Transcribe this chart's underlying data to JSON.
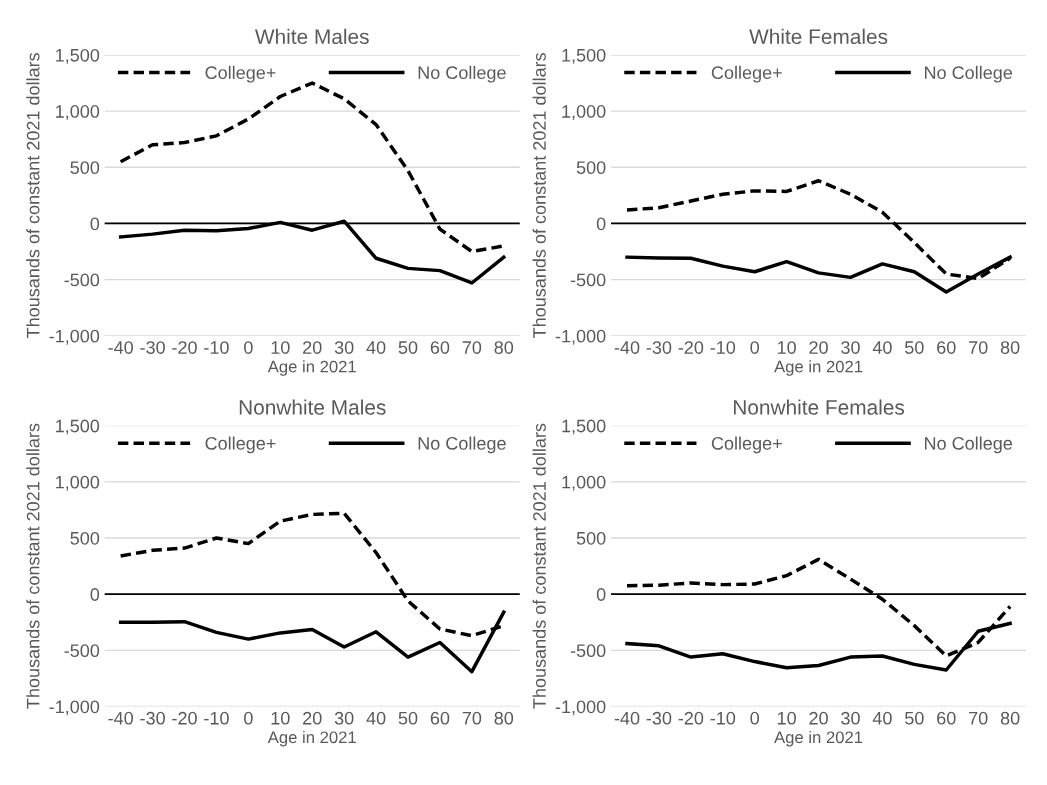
{
  "chart_data": [
    {
      "type": "line",
      "title": "White Males",
      "xlabel": "Age in 2021",
      "ylabel": "Thousands of constant 2021 dollars",
      "categories": [
        "-40",
        "-30",
        "-20",
        "-10",
        "0",
        "10",
        "20",
        "30",
        "40",
        "50",
        "60",
        "70",
        "80"
      ],
      "series": [
        {
          "name": "College+",
          "color": "#000000",
          "line_style": "dashed",
          "values": [
            550,
            700,
            720,
            780,
            930,
            1130,
            1250,
            1110,
            880,
            470,
            -50,
            -250,
            -200
          ]
        },
        {
          "name": "No College",
          "color": "#000000",
          "line_style": "solid",
          "values": [
            -120,
            -95,
            -60,
            -65,
            -45,
            10,
            -60,
            20,
            -310,
            -400,
            -420,
            -530,
            -300
          ]
        }
      ],
      "ylim": [
        -1000,
        1500
      ],
      "yticks": [
        {
          "value": -1000,
          "label": "-1,000"
        },
        {
          "value": -500,
          "label": "-500"
        },
        0,
        500,
        {
          "value": 1000,
          "label": "1,000"
        },
        {
          "value": 1500,
          "label": "1,500"
        }
      ],
      "ref_lines": [
        {
          "axis": "y",
          "value": 0,
          "color": "#000000"
        }
      ],
      "grid": "y",
      "legend": "top"
    },
    {
      "type": "line",
      "title": "White Females",
      "xlabel": "Age in 2021",
      "ylabel": "Thousands of constant 2021 dollars",
      "categories": [
        "-40",
        "-30",
        "-20",
        "-10",
        "0",
        "10",
        "20",
        "30",
        "40",
        "50",
        "60",
        "70",
        "80"
      ],
      "series": [
        {
          "name": "College+",
          "color": "#000000",
          "line_style": "dashed",
          "values": [
            120,
            140,
            200,
            260,
            290,
            285,
            380,
            260,
            100,
            -170,
            -450,
            -490,
            -310
          ]
        },
        {
          "name": "No College",
          "color": "#000000",
          "line_style": "solid",
          "values": [
            -300,
            -307,
            -310,
            -380,
            -430,
            -340,
            -440,
            -480,
            -360,
            -430,
            -610,
            -450,
            -300
          ]
        }
      ],
      "ylim": [
        -1000,
        1500
      ],
      "yticks": [
        {
          "value": -1000,
          "label": "-1,000"
        },
        {
          "value": -500,
          "label": "-500"
        },
        0,
        500,
        {
          "value": 1000,
          "label": "1,000"
        },
        {
          "value": 1500,
          "label": "1,500"
        }
      ],
      "ref_lines": [
        {
          "axis": "y",
          "value": 0,
          "color": "#000000"
        }
      ],
      "grid": "y",
      "legend": "top"
    },
    {
      "type": "line",
      "title": "Nonwhite Males",
      "xlabel": "Age in 2021",
      "ylabel": "Thousands of constant 2021 dollars",
      "categories": [
        "-40",
        "-30",
        "-20",
        "-10",
        "0",
        "10",
        "20",
        "30",
        "40",
        "50",
        "60",
        "70",
        "80"
      ],
      "series": [
        {
          "name": "College+",
          "color": "#000000",
          "line_style": "dashed",
          "values": [
            340,
            390,
            410,
            500,
            450,
            650,
            710,
            720,
            370,
            -60,
            -310,
            -370,
            -280
          ]
        },
        {
          "name": "No College",
          "color": "#000000",
          "line_style": "solid",
          "values": [
            -250,
            -250,
            -245,
            -340,
            -400,
            -345,
            -315,
            -470,
            -335,
            -560,
            -430,
            -690,
            -160
          ]
        }
      ],
      "ylim": [
        -1000,
        1500
      ],
      "yticks": [
        {
          "value": -1000,
          "label": "-1,000"
        },
        {
          "value": -500,
          "label": "-500"
        },
        0,
        500,
        {
          "value": 1000,
          "label": "1,000"
        },
        {
          "value": 1500,
          "label": "1,500"
        }
      ],
      "ref_lines": [
        {
          "axis": "y",
          "value": 0,
          "color": "#000000"
        }
      ],
      "grid": "y",
      "legend": "top"
    },
    {
      "type": "line",
      "title": "Nonwhite Females",
      "xlabel": "Age in 2021",
      "ylabel": "Thousands of constant 2021 dollars",
      "categories": [
        "-40",
        "-30",
        "-20",
        "-10",
        "0",
        "10",
        "20",
        "30",
        "40",
        "50",
        "60",
        "70",
        "80"
      ],
      "series": [
        {
          "name": "College+",
          "color": "#000000",
          "line_style": "dashed",
          "values": [
            75,
            80,
            100,
            85,
            90,
            165,
            310,
            135,
            -45,
            -280,
            -550,
            -430,
            -110
          ]
        },
        {
          "name": "No College",
          "color": "#000000",
          "line_style": "solid",
          "values": [
            -440,
            -460,
            -560,
            -530,
            -600,
            -655,
            -635,
            -560,
            -550,
            -625,
            -675,
            -330,
            -260
          ]
        }
      ],
      "ylim": [
        -1000,
        1500
      ],
      "yticks": [
        {
          "value": -1000,
          "label": "-1,000"
        },
        {
          "value": -500,
          "label": "-500"
        },
        0,
        500,
        {
          "value": 1000,
          "label": "1,000"
        },
        {
          "value": 1500,
          "label": "1,500"
        }
      ],
      "ref_lines": [
        {
          "axis": "y",
          "value": 0,
          "color": "#000000"
        }
      ],
      "grid": "y",
      "legend": "top"
    }
  ]
}
